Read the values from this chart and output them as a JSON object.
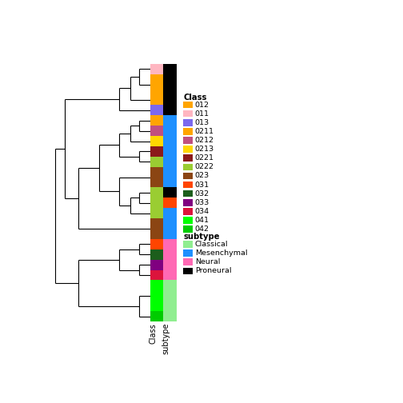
{
  "segs": [
    [
      0,
      1,
      "#FFB6C1",
      "#000000"
    ],
    [
      1,
      3,
      "#FFA500",
      "#000000"
    ],
    [
      3,
      4,
      "#FFA500",
      "#000000"
    ],
    [
      4,
      5,
      "#7B68EE",
      "#000000"
    ],
    [
      5,
      6,
      "#FFA500",
      "#1E90FF"
    ],
    [
      6,
      7,
      "#C05080",
      "#1E90FF"
    ],
    [
      7,
      8,
      "#FFD700",
      "#1E90FF"
    ],
    [
      8,
      9,
      "#8B1A1A",
      "#1E90FF"
    ],
    [
      9,
      10,
      "#9ACD32",
      "#1E90FF"
    ],
    [
      10,
      12,
      "#8B4513",
      "#1E90FF"
    ],
    [
      12,
      13,
      "#9ACD32",
      "#000000"
    ],
    [
      13,
      14,
      "#9ACD32",
      "#FF4500"
    ],
    [
      14,
      15,
      "#9ACD32",
      "#1E90FF"
    ],
    [
      15,
      17,
      "#8B4513",
      "#1E90FF"
    ],
    [
      17,
      18,
      "#FF4500",
      "#FF69B4"
    ],
    [
      18,
      19,
      "#1C5E1C",
      "#FF69B4"
    ],
    [
      19,
      20,
      "#800080",
      "#FF69B4"
    ],
    [
      20,
      21,
      "#DC143C",
      "#FF69B4"
    ],
    [
      21,
      24,
      "#00FF00",
      "#90EE90"
    ],
    [
      24,
      25,
      "#00CC00",
      "#90EE90"
    ]
  ],
  "class_legend": [
    {
      "label": "012",
      "color": "#FFA500"
    },
    {
      "label": "011",
      "color": "#FFB6C1"
    },
    {
      "label": "013",
      "color": "#7B68EE"
    },
    {
      "label": "0211",
      "color": "#FFA500"
    },
    {
      "label": "0212",
      "color": "#C05080"
    },
    {
      "label": "0213",
      "color": "#FFD700"
    },
    {
      "label": "0221",
      "color": "#8B1A1A"
    },
    {
      "label": "0222",
      "color": "#9ACD32"
    },
    {
      "label": "023",
      "color": "#8B4513"
    },
    {
      "label": "031",
      "color": "#FF4500"
    },
    {
      "label": "032",
      "color": "#1C5E1C"
    },
    {
      "label": "033",
      "color": "#800080"
    },
    {
      "label": "034",
      "color": "#DC143C"
    },
    {
      "label": "041",
      "color": "#00FF00"
    },
    {
      "label": "042",
      "color": "#00CC00"
    }
  ],
  "subtype_legend": [
    {
      "label": "Classical",
      "color": "#90EE90"
    },
    {
      "label": "Mesenchymal",
      "color": "#1E90FF"
    },
    {
      "label": "Neural",
      "color": "#FF69B4"
    },
    {
      "label": "Proneural",
      "color": "#000000"
    }
  ],
  "bg_color": "#FFFFFF"
}
